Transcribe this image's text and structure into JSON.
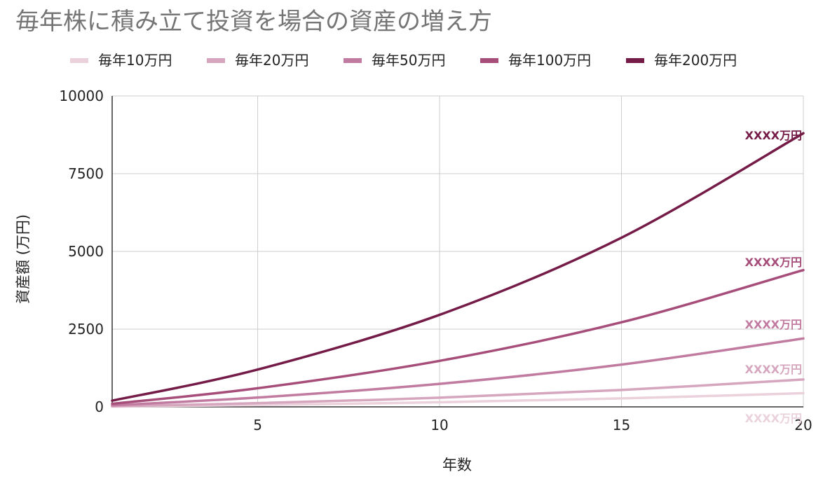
{
  "chart_data": {
    "type": "line",
    "title": "毎年株に積み立て投資を場合の資産の増え方",
    "xlabel": "年数",
    "ylabel": "資産額 (万円)",
    "xlim": [
      1,
      20
    ],
    "ylim": [
      0,
      10000
    ],
    "x_ticks": [
      5,
      10,
      15,
      20
    ],
    "y_ticks": [
      0,
      2500,
      5000,
      7500,
      10000
    ],
    "y_tick_labels": [
      "0",
      "2500",
      "5000",
      "7500",
      "10000"
    ],
    "grid": true,
    "legend_position": "top",
    "x": [
      1,
      5,
      10,
      15,
      20
    ],
    "series": [
      {
        "name": "毎年10万円",
        "color": "#ead1dc",
        "values": [
          10,
          60,
          148,
          272,
          440
        ],
        "end_label": "XXXX万円"
      },
      {
        "name": "毎年20万円",
        "color": "#d5a6bd",
        "values": [
          20,
          120,
          296,
          544,
          880
        ],
        "end_label": "XXXX万円"
      },
      {
        "name": "毎年50万円",
        "color": "#c27ba0",
        "values": [
          50,
          300,
          740,
          1360,
          2200
        ],
        "end_label": "XXXX万円"
      },
      {
        "name": "毎年100万円",
        "color": "#a64d79",
        "values": [
          100,
          600,
          1480,
          2720,
          4400
        ],
        "end_label": "XXXX万円"
      },
      {
        "name": "毎年200万円",
        "color": "#741b47",
        "values": [
          200,
          1200,
          2960,
          5440,
          8800
        ],
        "end_label": "XXXX万円"
      }
    ]
  }
}
